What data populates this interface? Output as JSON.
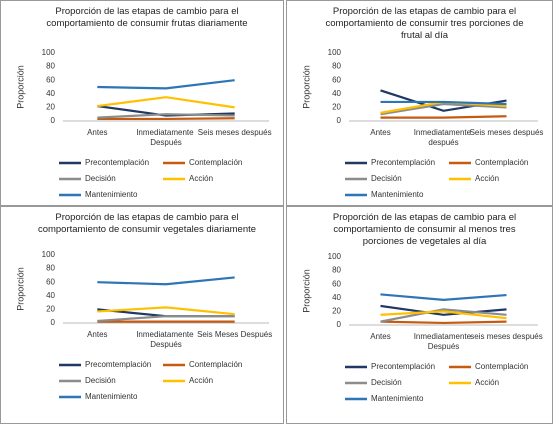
{
  "chart_data": [
    {
      "type": "line",
      "title": "Proporción de las etapas de cambio para el comportamiento de consumir frutas diariamente",
      "y_label": "Proporción",
      "categories": [
        "Antes",
        "Inmediatamente Después",
        "Seis meses después"
      ],
      "ylim": [
        0,
        100
      ],
      "yticks": [
        0,
        20,
        40,
        60,
        80,
        100
      ],
      "grid": false,
      "series": [
        {
          "name": "Precontemplación",
          "color": "#1f3864",
          "values": [
            22,
            8,
            11
          ]
        },
        {
          "name": "Contemplación",
          "color": "#c55a11",
          "values": [
            3,
            3,
            4
          ]
        },
        {
          "name": "Decisión",
          "color": "#8c8c8c",
          "values": [
            5,
            10,
            8
          ]
        },
        {
          "name": "Acción",
          "color": "#ffc000",
          "values": [
            22,
            35,
            20
          ]
        },
        {
          "name": "Mantenimiento",
          "color": "#2e75b6",
          "values": [
            50,
            48,
            60
          ]
        }
      ]
    },
    {
      "type": "line",
      "title": "Proporción de las etapas de cambio para el comportamiento de consumir tres porciones de frutal al día",
      "y_label": "Proporción",
      "categories": [
        "Antes",
        "Inmediatamente después",
        "Seis meses después"
      ],
      "ylim": [
        0,
        100
      ],
      "yticks": [
        0,
        20,
        40,
        60,
        80,
        100
      ],
      "grid": false,
      "series": [
        {
          "name": "Precontemplación",
          "color": "#1f3864",
          "values": [
            45,
            15,
            30
          ]
        },
        {
          "name": "Contemplación",
          "color": "#c55a11",
          "values": [
            5,
            5,
            7
          ]
        },
        {
          "name": "Decisión",
          "color": "#8c8c8c",
          "values": [
            10,
            25,
            20
          ]
        },
        {
          "name": "Acción",
          "color": "#ffc000",
          "values": [
            12,
            28,
            22
          ]
        },
        {
          "name": "Mantenimiento",
          "color": "#2e75b6",
          "values": [
            28,
            28,
            25
          ]
        }
      ]
    },
    {
      "type": "line",
      "title": "Proporción de las etapas de cambio para el comportamiento de consumir vegetales diariamente",
      "y_label": "Proporción",
      "categories": [
        "Antes",
        "Inmediatamente Después",
        "Seis Meses Después"
      ],
      "ylim": [
        0,
        100
      ],
      "yticks": [
        0,
        20,
        40,
        60,
        80,
        100
      ],
      "grid": false,
      "series": [
        {
          "name": "Precomtemplación",
          "color": "#1f3864",
          "values": [
            20,
            10,
            10
          ]
        },
        {
          "name": "Contemplación",
          "color": "#c55a11",
          "values": [
            2,
            2,
            2
          ]
        },
        {
          "name": "Decisión",
          "color": "#8c8c8c",
          "values": [
            3,
            10,
            10
          ]
        },
        {
          "name": "Acción",
          "color": "#ffc000",
          "values": [
            17,
            23,
            13
          ]
        },
        {
          "name": "Mantenimiento",
          "color": "#2e75b6",
          "values": [
            60,
            57,
            67
          ]
        }
      ]
    },
    {
      "type": "line",
      "title": "Proporción de las etapas de cambio para el comportamiento de consumir al menos tres porciones de vegetales al día",
      "y_label": "Proporción",
      "categories": [
        "Antes",
        "Inmediatamente Después",
        "seis meses después"
      ],
      "ylim": [
        0,
        100
      ],
      "yticks": [
        0,
        20,
        40,
        60,
        80,
        100
      ],
      "grid": false,
      "series": [
        {
          "name": "Precontemplación",
          "color": "#1f3864",
          "values": [
            28,
            15,
            23
          ]
        },
        {
          "name": "Contemplación",
          "color": "#c55a11",
          "values": [
            5,
            3,
            5
          ]
        },
        {
          "name": "Decisión",
          "color": "#8c8c8c",
          "values": [
            5,
            23,
            15
          ]
        },
        {
          "name": "Acción",
          "color": "#ffc000",
          "values": [
            15,
            20,
            10
          ]
        },
        {
          "name": "Mantenimiento",
          "color": "#2e75b6",
          "values": [
            45,
            37,
            44
          ]
        }
      ]
    }
  ]
}
